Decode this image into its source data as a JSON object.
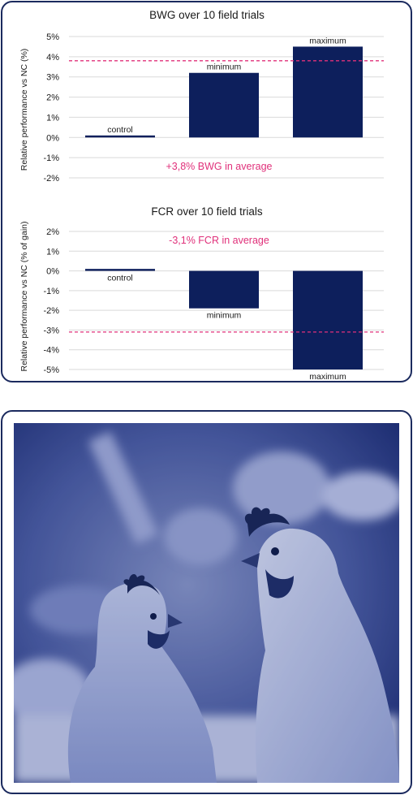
{
  "colors": {
    "bar": "#0d1f5c",
    "average_line": "#e0307a",
    "annotation": "#e0307a",
    "gridline": "#d9d9d9",
    "frame": "#1b2a5e",
    "photo_tint": "#24357c"
  },
  "chart_data": [
    {
      "type": "bar",
      "title": "BWG over 10 field trials",
      "ylabel": "Relative performance vs NC (%)",
      "xlabel": "",
      "categories": [
        "control",
        "minimum",
        "maximum"
      ],
      "values": [
        0.1,
        3.2,
        4.5
      ],
      "unit": "%",
      "ylim": [
        -2,
        5
      ],
      "yticks": [
        "5%",
        "4%",
        "3%",
        "2%",
        "1%",
        "0%",
        "-1%",
        "-2%"
      ],
      "grid": true,
      "average_line": 3.8,
      "annotation": "+3,8% BWG in average",
      "label_position": [
        "above",
        "above",
        "above"
      ]
    },
    {
      "type": "bar",
      "title": "FCR over 10 field trials",
      "ylabel": "Relative performance vs NC (% of gain)",
      "xlabel": "",
      "categories": [
        "control",
        "minimum",
        "maximum"
      ],
      "values": [
        0.1,
        -1.9,
        -5.0
      ],
      "unit": "%",
      "ylim": [
        -5,
        2
      ],
      "yticks": [
        "2%",
        "1%",
        "0%",
        "-1%",
        "-2%",
        "-3%",
        "-4%",
        "-5%"
      ],
      "grid": true,
      "average_line": -3.1,
      "annotation": "-3,1% FCR in average",
      "label_position": [
        "below",
        "below",
        "below"
      ]
    }
  ],
  "photo": {
    "subject": "two white broiler chickens in a poultry house, blue duotone"
  }
}
